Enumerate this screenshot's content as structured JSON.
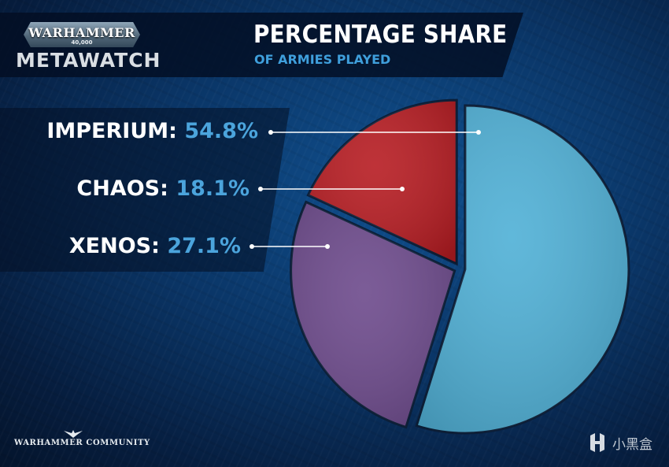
{
  "brand": {
    "logo_text": "WARHAMMER",
    "logo_sub": "40,000",
    "product": "METAWATCH",
    "footer": "WARHAMMER COMMUNITY",
    "watermark": "小黑盒"
  },
  "colors": {
    "accent": "#4ba4dc",
    "imperium": "#4fb0d6",
    "chaos": "#b71c22",
    "xenos": "#6d4a8c"
  },
  "chart_data": {
    "type": "pie",
    "title": "PERCENTAGE SHARE",
    "subtitle": "OF ARMIES PLAYED",
    "slices": [
      {
        "name": "IMPERIUM",
        "value": 54.8,
        "pct_label": "54.8%",
        "color": "#4fb0d6"
      },
      {
        "name": "XENOS",
        "value": 27.1,
        "pct_label": "27.1%",
        "color": "#6d4a8c"
      },
      {
        "name": "CHAOS",
        "value": 18.1,
        "pct_label": "18.1%",
        "color": "#b71c22"
      }
    ],
    "start_angle_deg": 0,
    "direction": "clockwise",
    "legend": "left"
  }
}
